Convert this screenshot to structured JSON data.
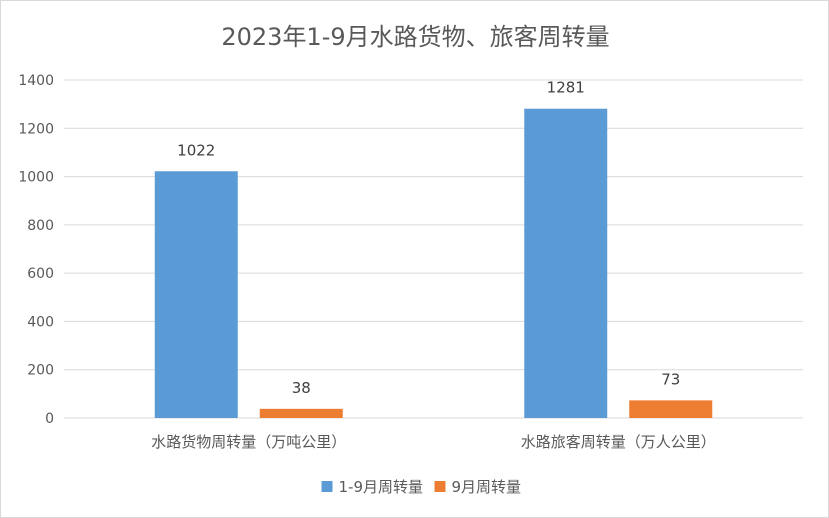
{
  "chart_data": {
    "type": "bar",
    "title": "2023年1-9月水路货物、旅客周转量",
    "categories": [
      "水路货物周转量（万吨公里）",
      "水路旅客周转量（万人公里）"
    ],
    "series": [
      {
        "name": "1-9月周转量",
        "values": [
          1022,
          1281
        ],
        "color": "#5B9BD5"
      },
      {
        "name": "9月周转量",
        "values": [
          38,
          73
        ],
        "color": "#ED7D31"
      }
    ],
    "ylim": [
      0,
      1400
    ],
    "yticks": [
      0,
      200,
      400,
      600,
      800,
      1000,
      1200,
      1400
    ],
    "grid": true,
    "legend_position": "bottom"
  }
}
